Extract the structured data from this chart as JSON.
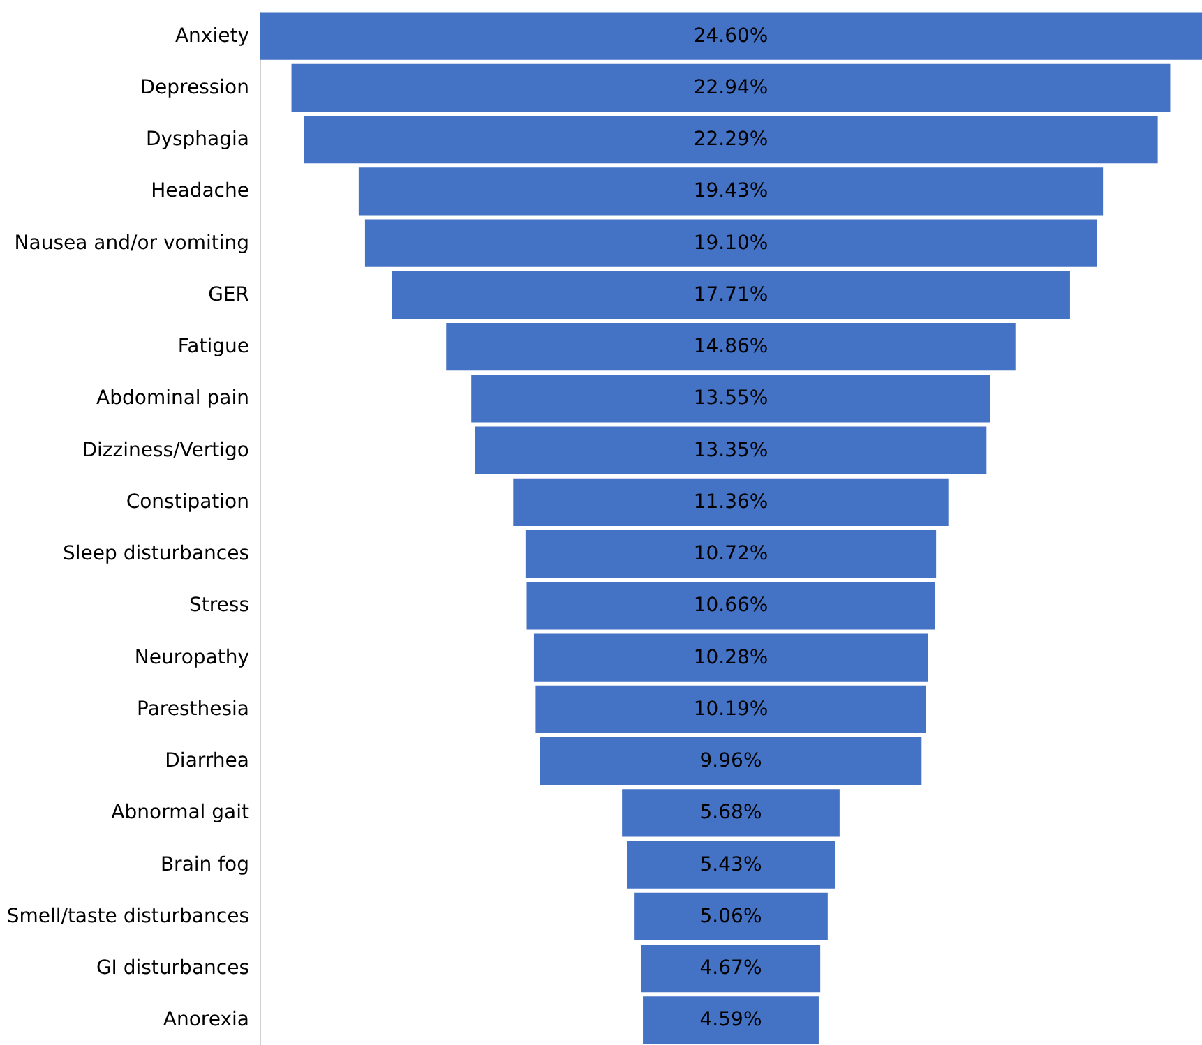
{
  "chart_data": {
    "type": "other",
    "categories": [
      "Anxiety",
      "Depression",
      "Dysphagia",
      "Headache",
      "Nausea and/or vomiting",
      "GER",
      "Fatigue",
      "Abdominal pain",
      "Dizziness/Vertigo",
      "Constipation",
      "Sleep disturbances",
      "Stress",
      "Neuropathy",
      "Paresthesia",
      "Diarrhea",
      "Abnormal gait",
      "Brain fog",
      "Smell/taste disturbances",
      "GI disturbances",
      "Anorexia"
    ],
    "values": [
      24.6,
      22.94,
      22.29,
      19.43,
      19.1,
      17.71,
      14.86,
      13.55,
      13.35,
      11.36,
      10.72,
      10.66,
      10.28,
      10.19,
      9.96,
      5.68,
      5.43,
      5.06,
      4.67,
      4.59
    ],
    "value_labels": [
      "24.60%",
      "22.94%",
      "22.29%",
      "19.43%",
      "19.10%",
      "17.71%",
      "14.86%",
      "13.55%",
      "13.35%",
      "11.36%",
      "10.72%",
      "10.66%",
      "10.28%",
      "10.19%",
      "9.96%",
      "5.68%",
      "5.43%",
      "5.06%",
      "4.67%",
      "4.59%"
    ],
    "color": "#4472c4"
  }
}
